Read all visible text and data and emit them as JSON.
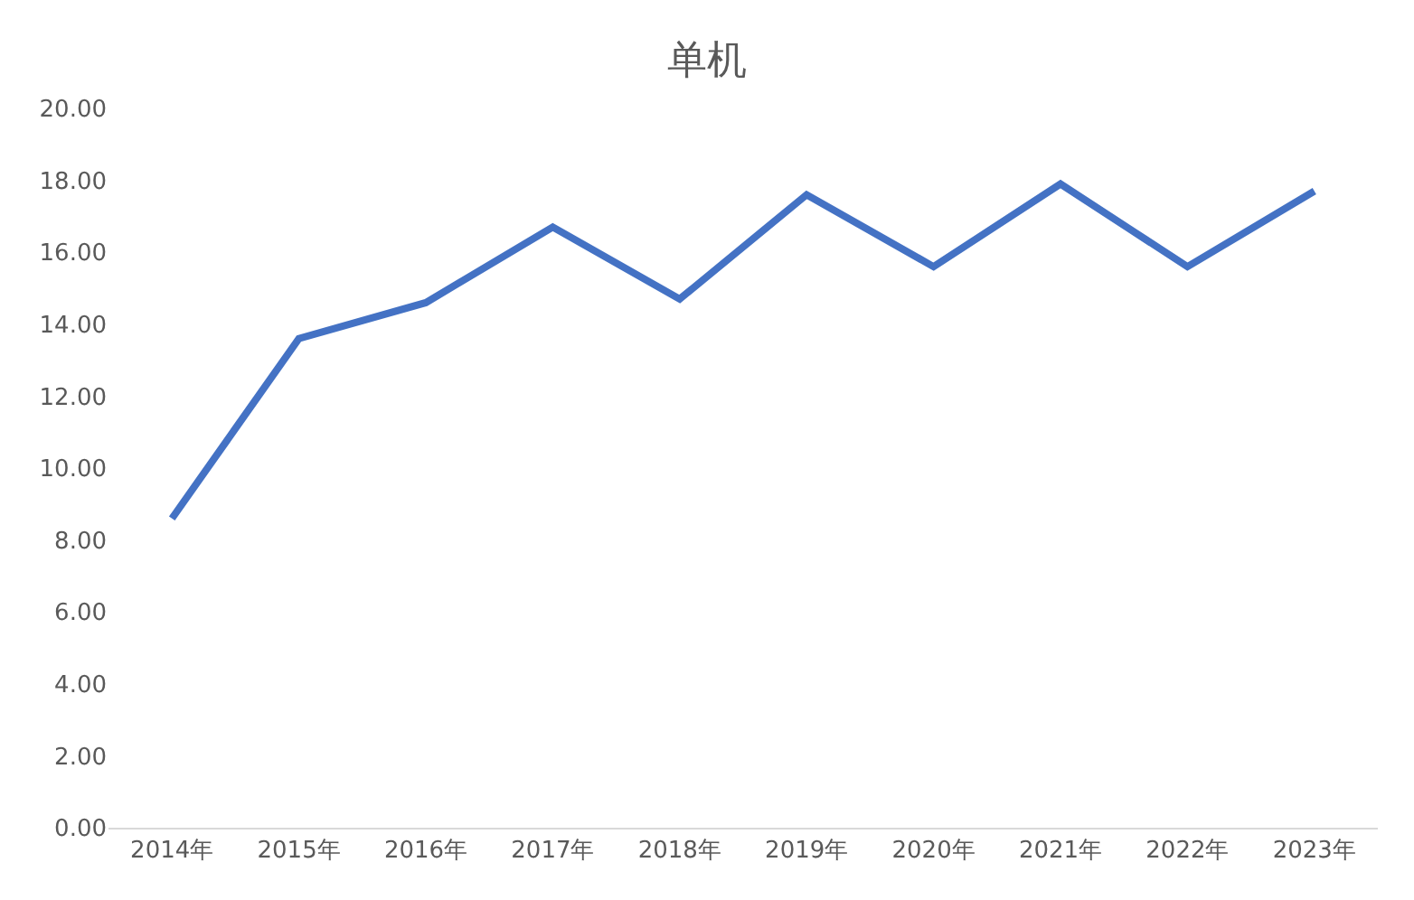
{
  "chart_data": {
    "type": "line",
    "title": "单机",
    "categories": [
      "2014年",
      "2015年",
      "2016年",
      "2017年",
      "2018年",
      "2019年",
      "2020年",
      "2021年",
      "2022年",
      "2023年"
    ],
    "series": [
      {
        "color": "#4472c4",
        "values": [
          8.6,
          13.6,
          14.6,
          16.7,
          14.7,
          17.6,
          15.6,
          17.9,
          15.6,
          17.7
        ]
      }
    ],
    "ylim": [
      0,
      20
    ],
    "yticks": [
      {
        "value": 0,
        "label": "0.00"
      },
      {
        "value": 2,
        "label": "2.00"
      },
      {
        "value": 4,
        "label": "4.00"
      },
      {
        "value": 6,
        "label": "6.00"
      },
      {
        "value": 8,
        "label": "8.00"
      },
      {
        "value": 10,
        "label": "10.00"
      },
      {
        "value": 12,
        "label": "12.00"
      },
      {
        "value": 14,
        "label": "14.00"
      },
      {
        "value": 16,
        "label": "16.00"
      },
      {
        "value": 18,
        "label": "18.00"
      },
      {
        "value": 20,
        "label": "20.00"
      }
    ],
    "grid": false,
    "marker": "none",
    "line_style": "solid"
  }
}
